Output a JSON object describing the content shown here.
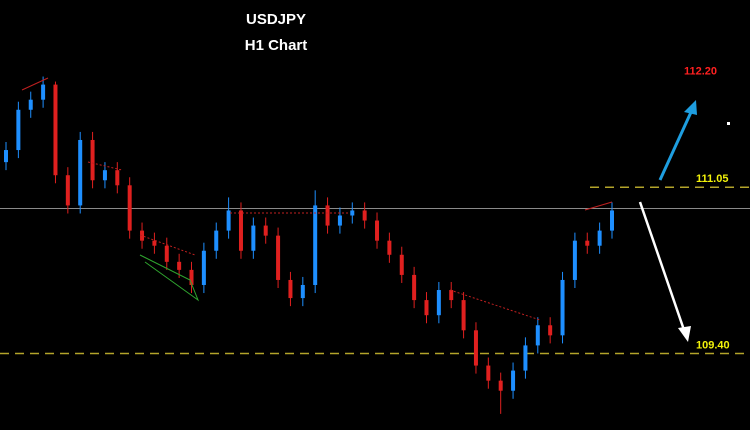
{
  "chart_data": {
    "type": "candlestick",
    "title": "USDJPY",
    "subtitle": "H1 Chart",
    "ylim": [
      108.64,
      112.91
    ],
    "up_color": "#1e8fff",
    "down_color": "#e0201f",
    "open": [
      111.3,
      111.42,
      111.82,
      111.92,
      112.07,
      111.17,
      110.87,
      111.52,
      111.12,
      111.22,
      111.07,
      110.62,
      110.52,
      110.47,
      110.31,
      110.23,
      110.08,
      110.42,
      110.62,
      110.82,
      110.42,
      110.67,
      110.57,
      110.13,
      109.95,
      110.08,
      110.87,
      110.67,
      110.77,
      110.82,
      110.72,
      110.52,
      110.38,
      110.18,
      109.93,
      109.78,
      110.03,
      109.93,
      109.63,
      109.28,
      109.13,
      109.03,
      109.23,
      109.48,
      109.68,
      109.58,
      110.13,
      110.52,
      110.47,
      110.62
    ],
    "high": [
      111.5,
      111.9,
      112.0,
      112.15,
      112.1,
      111.25,
      111.6,
      111.6,
      111.3,
      111.3,
      111.15,
      110.7,
      110.6,
      110.55,
      110.39,
      110.31,
      110.5,
      110.7,
      110.95,
      110.9,
      110.75,
      110.75,
      110.65,
      110.21,
      110.16,
      111.02,
      110.95,
      110.85,
      110.9,
      110.9,
      110.8,
      110.6,
      110.46,
      110.26,
      110.01,
      110.11,
      110.11,
      110.01,
      109.71,
      109.36,
      109.21,
      109.31,
      109.56,
      109.76,
      109.76,
      110.21,
      110.6,
      110.6,
      110.7,
      110.9
    ],
    "low": [
      111.22,
      111.34,
      111.74,
      111.84,
      111.09,
      110.79,
      110.79,
      111.04,
      111.04,
      110.99,
      110.54,
      110.44,
      110.39,
      110.23,
      110.15,
      110.0,
      110.0,
      110.34,
      110.54,
      110.34,
      110.34,
      110.49,
      110.05,
      109.87,
      109.87,
      110.0,
      110.59,
      110.59,
      110.69,
      110.64,
      110.44,
      110.3,
      110.1,
      109.85,
      109.7,
      109.7,
      109.85,
      109.55,
      109.2,
      109.05,
      108.8,
      108.95,
      109.15,
      109.4,
      109.5,
      109.5,
      110.05,
      110.39,
      110.39,
      110.54
    ],
    "close": [
      111.42,
      111.82,
      111.92,
      112.07,
      111.17,
      110.87,
      111.52,
      111.12,
      111.22,
      111.07,
      110.62,
      110.52,
      110.47,
      110.31,
      110.23,
      110.08,
      110.42,
      110.62,
      110.82,
      110.42,
      110.67,
      110.57,
      110.13,
      109.95,
      110.08,
      110.87,
      110.67,
      110.77,
      110.82,
      110.72,
      110.52,
      110.38,
      110.18,
      109.93,
      109.78,
      110.03,
      109.93,
      109.63,
      109.28,
      109.13,
      109.03,
      109.23,
      109.48,
      109.68,
      109.58,
      110.13,
      110.52,
      110.47,
      110.62,
      110.82
    ],
    "price_line": {
      "value": 110.84,
      "color": "#8a8a8a"
    },
    "levels": [
      {
        "value": 111.05,
        "label": "111.05",
        "color": "#b3a42a",
        "label_color": "#f2f20a"
      },
      {
        "value": 109.4,
        "label": "109.40",
        "color": "#b3a42a",
        "label_color": "#f2f20a"
      }
    ],
    "target": {
      "value": 112.2,
      "label": "112.20",
      "color": "#ff2020"
    }
  }
}
